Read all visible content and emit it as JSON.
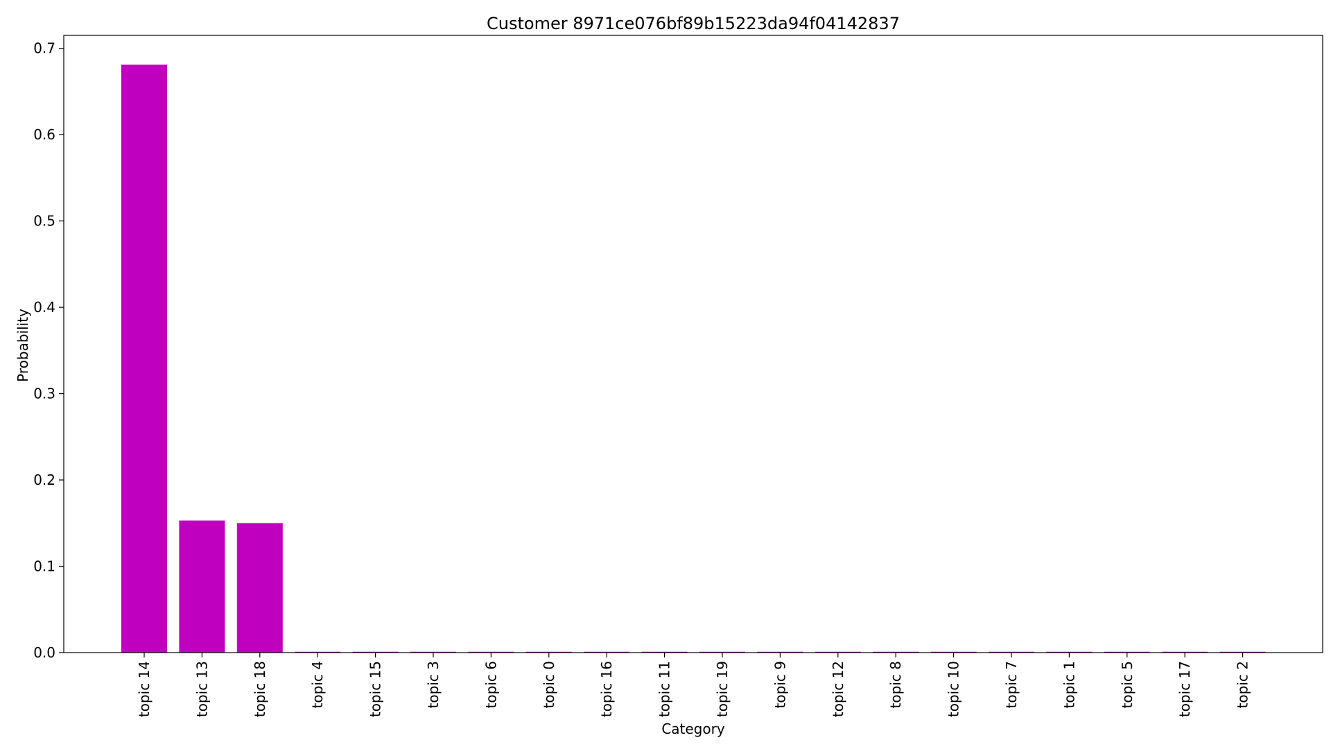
{
  "chart_data": {
    "type": "bar",
    "title": "Customer 8971ce076bf89b15223da94f04142837",
    "xlabel": "Category",
    "ylabel": "Probability",
    "categories": [
      "topic 14",
      "topic 13",
      "topic 18",
      "topic 4",
      "topic 15",
      "topic 3",
      "topic 6",
      "topic 0",
      "topic 16",
      "topic 11",
      "topic 19",
      "topic 9",
      "topic 12",
      "topic 8",
      "topic 10",
      "topic 7",
      "topic 1",
      "topic 5",
      "topic 17",
      "topic 2"
    ],
    "values": [
      0.681,
      0.153,
      0.15,
      0.001,
      0.001,
      0.001,
      0.001,
      0.001,
      0.001,
      0.001,
      0.001,
      0.001,
      0.001,
      0.001,
      0.001,
      0.001,
      0.001,
      0.001,
      0.001,
      0.001
    ],
    "ylim": [
      0,
      0.715
    ],
    "yticks": [
      0.0,
      0.1,
      0.2,
      0.3,
      0.4,
      0.5,
      0.6,
      0.7
    ],
    "ytick_labels": [
      "0.0",
      "0.1",
      "0.2",
      "0.3",
      "0.4",
      "0.5",
      "0.6",
      "0.7"
    ],
    "bar_color": "#bf00bf",
    "grid": false,
    "legend": "none"
  }
}
